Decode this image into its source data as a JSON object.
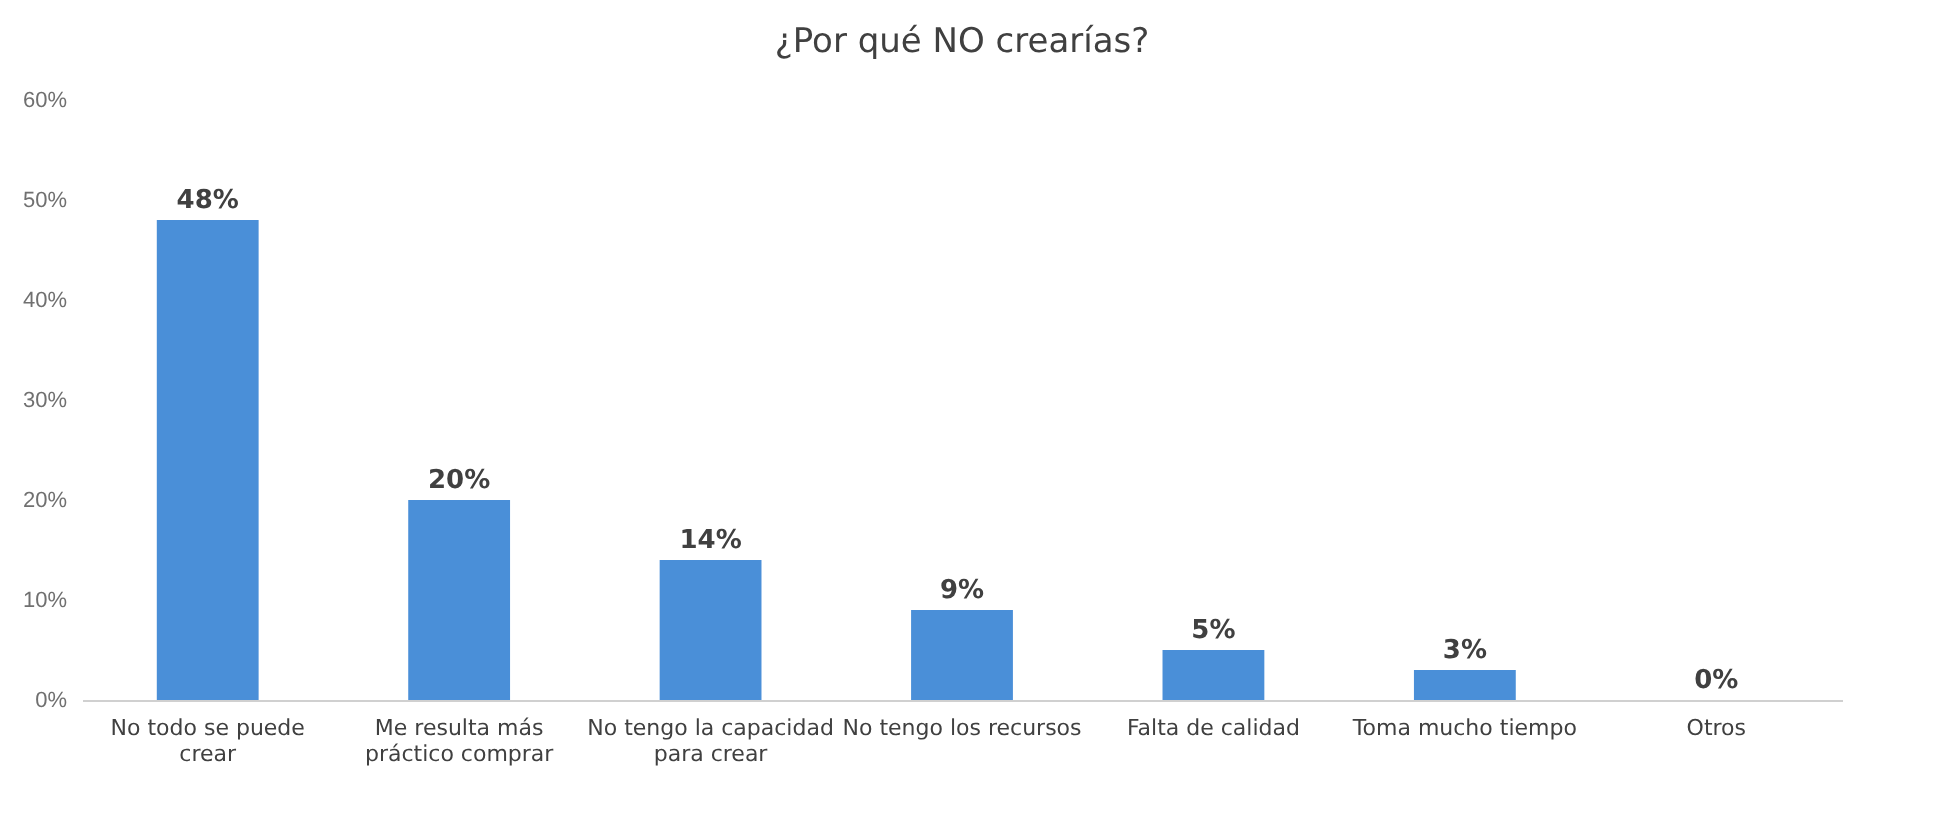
{
  "chart_data": {
    "type": "bar",
    "title": "¿Por qué NO crearías?",
    "categories": [
      "No todo se puede crear",
      "Me resulta más práctico comprar",
      "No tengo la capacidad para crear",
      "No tengo los recursos",
      "Falta de calidad",
      "Toma mucho tiempo",
      "Otros"
    ],
    "values": [
      48,
      20,
      14,
      9,
      5,
      3,
      0
    ],
    "color": "#4a8fd8",
    "data_labels": true,
    "value_labels": [
      "48%",
      "20%",
      "14%",
      "9%",
      "5%",
      "3%",
      "0%"
    ],
    "ylim": [
      0,
      60
    ],
    "yticks": [
      {
        "value": 0,
        "label": "0%"
      },
      {
        "value": 10,
        "label": "10%"
      },
      {
        "value": 20,
        "label": "20%"
      },
      {
        "value": 30,
        "label": "30%"
      },
      {
        "value": 40,
        "label": "40%"
      },
      {
        "value": 50,
        "label": "50%"
      },
      {
        "value": 60,
        "label": "60%"
      }
    ],
    "grid": false
  }
}
